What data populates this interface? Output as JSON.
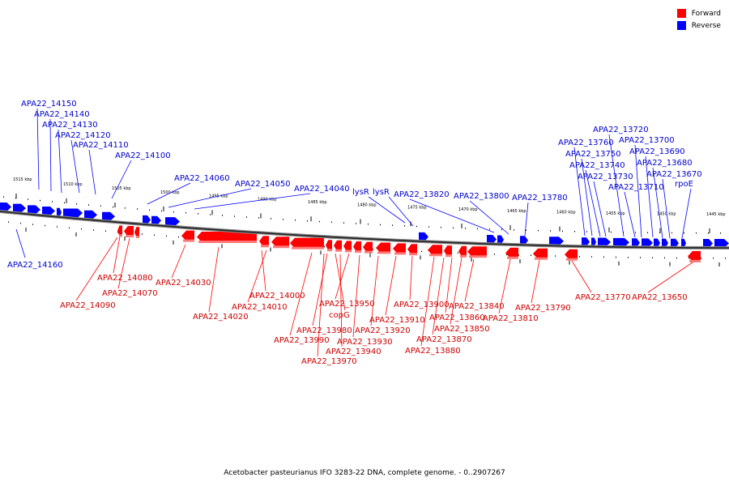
{
  "caption": "Acetobacter pasteurianus IFO 3283-22 DNA, complete genome. - 0..2907267",
  "legend": {
    "forward_label": "Forward",
    "reverse_label": "Reverse",
    "forward_color": "#ff0000",
    "reverse_color": "#0000ff"
  },
  "scale": {
    "unit": "kbp",
    "labels": [
      "1515 kbp",
      "1510 kbp",
      "1505 kbp",
      "1500 kbp",
      "1495 kbp",
      "1490 kbp",
      "1485 kbp",
      "1480 kbp",
      "1475 kbp",
      "1470 kbp",
      "1465 kbp",
      "1460 kbp",
      "1455 kbp",
      "1450 kbp",
      "1445 kbp"
    ]
  },
  "reverse_genes": [
    "APA22_14150",
    "APA22_14140",
    "APA22_14130",
    "APA22_14120",
    "APA22_14110",
    "APA22_14100",
    "APA22_14060",
    "APA22_14050",
    "APA22_14040",
    "lysR",
    "lysR",
    "APA22_13820",
    "APA22_13800",
    "APA22_13780",
    "APA22_13760",
    "APA22_13750",
    "APA22_13740",
    "APA22_13730",
    "APA22_13720",
    "APA22_13700",
    "APA22_13690",
    "APA22_13680",
    "APA22_13670",
    "APA22_13710",
    "rpoE",
    "APA22_14160"
  ],
  "forward_genes": [
    "APA22_14080",
    "APA22_14070",
    "APA22_14090",
    "APA22_14030",
    "APA22_14020",
    "APA22_14000",
    "APA22_14010",
    "APA22_13950",
    "copG",
    "APA22_13980",
    "APA22_13990",
    "APA22_13940",
    "APA22_13970",
    "APA22_13930",
    "APA22_13920",
    "APA22_13910",
    "APA22_13900",
    "APA22_13860",
    "APA22_13850",
    "APA22_13870",
    "APA22_13880",
    "APA22_13840",
    "APA22_13810",
    "APA22_13790",
    "APA22_13770",
    "APA22_13650"
  ]
}
